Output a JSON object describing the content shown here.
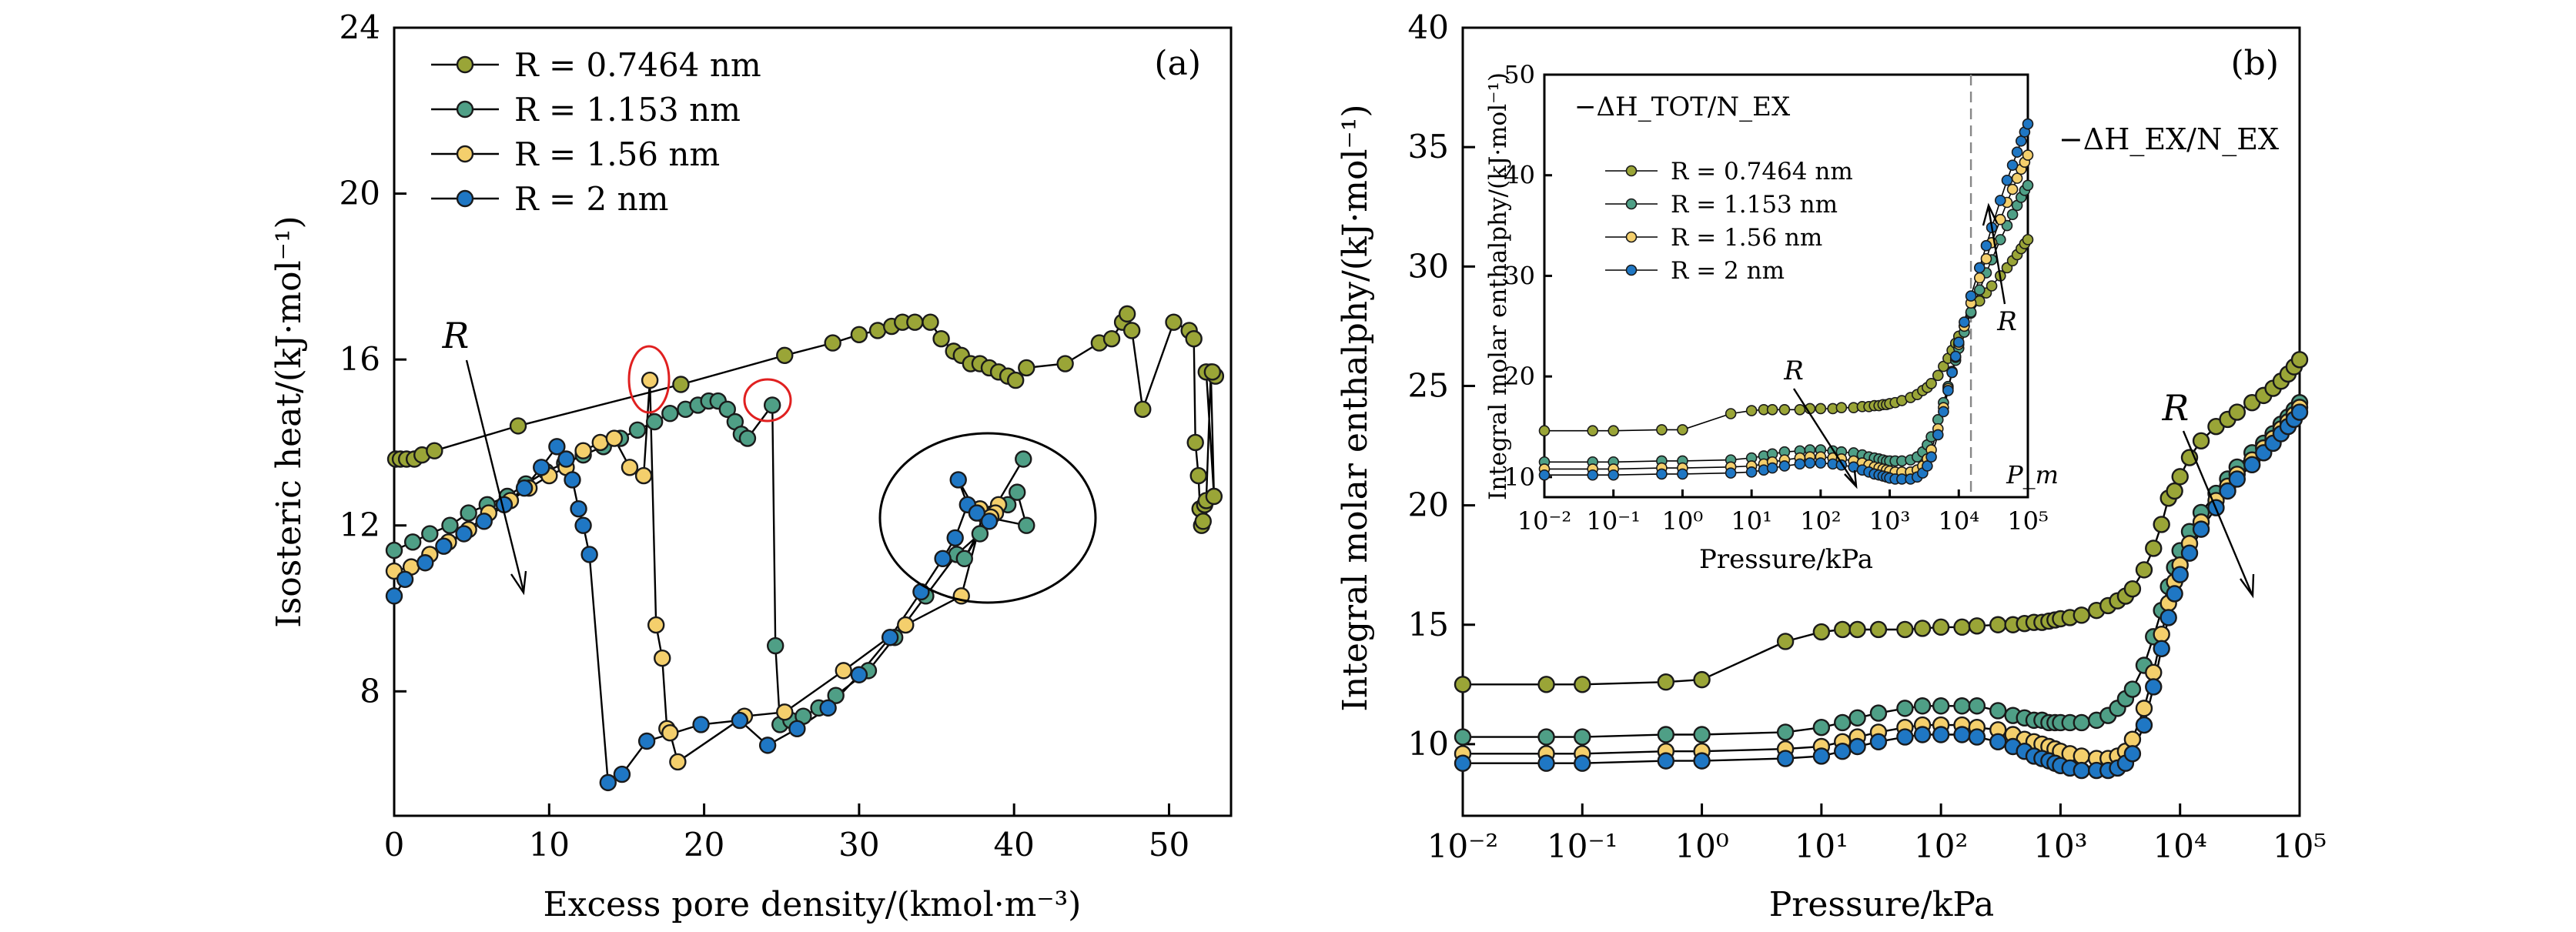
{
  "colors": {
    "olive": "#9aa537",
    "teal": "#4f9f86",
    "yellow": "#f4cf6c",
    "blue": "#1f77c4",
    "red_circle": "#e02020",
    "dashed_line": "#888888"
  },
  "chart_data": [
    {
      "panel": "(a)",
      "type": "line",
      "markers": "circle",
      "xlabel": "Excess pore density/(kmol·m⁻³)",
      "ylabel": "Isosteric heat/(kJ·mol⁻¹)",
      "xlim": [
        0,
        54
      ],
      "ylim": [
        5,
        24
      ],
      "xticks": [
        0,
        10,
        20,
        30,
        40,
        50
      ],
      "yticks": [
        8,
        12,
        16,
        20,
        24
      ],
      "xtick_labels": [
        "0",
        "10",
        "20",
        "30",
        "40",
        "50"
      ],
      "ytick_labels": [
        "8",
        "12",
        "16",
        "20",
        "24"
      ],
      "grid": false,
      "legend_position": "top-left",
      "annotations": [
        {
          "text": "R",
          "style": "italic",
          "note": "arrow pointing down"
        },
        {
          "text": "(a)"
        }
      ],
      "series": [
        {
          "name": "R = 0.7464 nm",
          "color": "olive",
          "x": [
            0.1,
            0.4,
            0.8,
            1.3,
            1.8,
            2.6,
            8.0,
            18.5,
            25.2,
            28.3,
            30.0,
            31.2,
            32.1,
            32.8,
            33.6,
            34.6,
            35.3,
            36.1,
            36.6,
            37.2,
            37.8,
            38.4,
            39.0,
            39.6,
            40.1,
            40.8,
            43.3,
            45.5,
            46.3,
            47.0,
            47.3,
            47.6,
            48.3,
            50.3,
            51.3,
            51.6,
            51.7,
            51.9,
            52.0,
            52.1,
            52.2,
            52.3,
            52.4,
            52.7,
            52.9,
            52.4,
            53.0,
            52.8
          ],
          "y": [
            13.6,
            13.6,
            13.6,
            13.6,
            13.7,
            13.8,
            14.4,
            15.4,
            16.1,
            16.4,
            16.6,
            16.7,
            16.8,
            16.9,
            16.9,
            16.9,
            16.5,
            16.2,
            16.1,
            15.9,
            15.9,
            15.8,
            15.7,
            15.6,
            15.5,
            15.8,
            15.9,
            16.4,
            16.5,
            16.9,
            17.1,
            16.7,
            14.8,
            16.9,
            16.7,
            16.5,
            14.0,
            13.2,
            12.4,
            12.0,
            12.1,
            12.5,
            12.6,
            15.7,
            12.7,
            15.7,
            15.6,
            15.7
          ]
        },
        {
          "name": "R = 1.153 nm",
          "color": "teal",
          "x": [
            0.0,
            1.2,
            2.3,
            3.6,
            4.8,
            6.0,
            7.3,
            8.5,
            9.8,
            11.0,
            12.2,
            13.5,
            14.6,
            15.7,
            16.8,
            17.8,
            18.8,
            19.6,
            20.3,
            20.9,
            21.5,
            22.0,
            22.4,
            22.8,
            24.4,
            24.6,
            24.9,
            25.6,
            26.4,
            27.4,
            28.5,
            30.6,
            32.3,
            34.3,
            36.3,
            37.8,
            39.6,
            40.2,
            40.8,
            38.2,
            36.8,
            40.6
          ],
          "y": [
            11.4,
            11.6,
            11.8,
            12.0,
            12.3,
            12.5,
            12.7,
            13.0,
            13.3,
            13.5,
            13.7,
            13.9,
            14.1,
            14.3,
            14.5,
            14.7,
            14.8,
            14.9,
            15.0,
            15.0,
            14.8,
            14.5,
            14.2,
            14.1,
            14.9,
            9.1,
            7.2,
            7.3,
            7.4,
            7.6,
            7.9,
            8.5,
            9.3,
            10.3,
            11.3,
            11.8,
            12.5,
            12.8,
            12.0,
            12.2,
            11.2,
            13.6
          ]
        },
        {
          "name": "R = 1.56 nm",
          "color": "yellow",
          "x": [
            0.0,
            1.1,
            2.3,
            3.5,
            4.8,
            6.1,
            7.5,
            8.7,
            10.0,
            11.1,
            12.2,
            13.3,
            14.2,
            15.2,
            16.1,
            16.5,
            16.9,
            17.3,
            17.6,
            17.8,
            18.3,
            22.6,
            25.2,
            29.0,
            33.0,
            36.6,
            38.0,
            37.8,
            39.0,
            38.8,
            38.5
          ],
          "y": [
            10.9,
            11.0,
            11.3,
            11.6,
            11.9,
            12.3,
            12.6,
            12.9,
            13.2,
            13.4,
            13.8,
            14.0,
            14.1,
            13.4,
            13.2,
            15.5,
            9.6,
            8.8,
            7.1,
            7.0,
            6.3,
            7.4,
            7.5,
            8.5,
            9.6,
            10.3,
            12.3,
            12.4,
            12.5,
            12.3,
            12.2
          ]
        },
        {
          "name": "R = 2 nm",
          "color": "blue",
          "x": [
            0.0,
            0.7,
            2.0,
            3.2,
            4.5,
            5.8,
            7.1,
            8.4,
            9.5,
            10.5,
            11.1,
            11.5,
            11.9,
            12.2,
            12.6,
            13.8,
            14.7,
            16.3,
            19.8,
            22.3,
            24.1,
            26.0,
            28.0,
            30.0,
            32.0,
            34.0,
            35.4,
            36.2,
            37.0,
            36.4,
            37.6,
            38.4
          ],
          "y": [
            10.3,
            10.7,
            11.1,
            11.5,
            11.8,
            12.1,
            12.5,
            12.9,
            13.4,
            13.9,
            13.6,
            13.1,
            12.4,
            12.0,
            11.3,
            5.8,
            6.0,
            6.8,
            7.2,
            7.3,
            6.7,
            7.1,
            7.6,
            8.4,
            9.3,
            10.4,
            11.2,
            11.7,
            12.5,
            13.1,
            12.3,
            12.1
          ]
        }
      ]
    },
    {
      "panel": "(b)",
      "type": "line",
      "markers": "circle",
      "xscale": "log",
      "xlabel": "Pressure/kPa",
      "ylabel": "Integral molar enthalphy/(kJ·mol⁻¹)",
      "xlim": [
        0.01,
        100000
      ],
      "ylim": [
        7,
        40
      ],
      "xtick_labels": [
        "10⁻²",
        "10⁻¹",
        "10⁰",
        "10¹",
        "10²",
        "10³",
        "10⁴",
        "10⁵"
      ],
      "yticks": [
        10,
        15,
        20,
        25,
        30,
        35,
        40
      ],
      "ytick_labels": [
        "10",
        "15",
        "20",
        "25",
        "30",
        "35",
        "40"
      ],
      "grid": false,
      "annotations": [
        {
          "text": "(b)"
        },
        {
          "text": "−ΔH_EX/N_EX"
        },
        {
          "text": "R",
          "style": "italic",
          "note": "arrow pointing down"
        }
      ],
      "x": [
        0.01,
        0.05,
        0.1,
        0.5,
        1,
        5,
        10,
        15,
        20,
        30,
        50,
        70,
        100,
        150,
        200,
        300,
        400,
        500,
        600,
        700,
        800,
        900,
        1000,
        1200,
        1500,
        2000,
        2500,
        3000,
        3500,
        4000,
        5000,
        6000,
        7000,
        8000,
        9000,
        10000,
        12000,
        15000,
        20000,
        25000,
        30000,
        40000,
        50000,
        60000,
        70000,
        80000,
        90000,
        100000
      ],
      "series": [
        {
          "name": "R = 0.7464 nm",
          "color": "olive",
          "y": [
            12.5,
            12.5,
            12.5,
            12.6,
            12.7,
            14.3,
            14.7,
            14.8,
            14.8,
            14.8,
            14.8,
            14.85,
            14.9,
            14.9,
            14.95,
            15.0,
            15.0,
            15.05,
            15.1,
            15.1,
            15.15,
            15.2,
            15.25,
            15.3,
            15.4,
            15.6,
            15.8,
            16.0,
            16.2,
            16.5,
            17.3,
            18.2,
            19.2,
            20.3,
            20.6,
            21.2,
            22.0,
            22.7,
            23.3,
            23.6,
            23.9,
            24.3,
            24.6,
            24.9,
            25.2,
            25.5,
            25.8,
            26.1
          ]
        },
        {
          "name": "R = 1.153 nm",
          "color": "teal",
          "y": [
            10.3,
            10.3,
            10.3,
            10.4,
            10.4,
            10.5,
            10.7,
            10.9,
            11.1,
            11.3,
            11.5,
            11.6,
            11.6,
            11.6,
            11.6,
            11.4,
            11.2,
            11.1,
            11.0,
            11.0,
            10.9,
            10.9,
            10.9,
            10.9,
            10.9,
            11.0,
            11.2,
            11.5,
            11.9,
            12.3,
            13.3,
            14.5,
            15.6,
            16.6,
            17.4,
            18.1,
            18.9,
            19.7,
            20.5,
            21.1,
            21.6,
            22.2,
            22.6,
            23.0,
            23.4,
            23.7,
            24.0,
            24.3
          ]
        },
        {
          "name": "R = 1.56 nm",
          "color": "yellow",
          "y": [
            9.6,
            9.6,
            9.6,
            9.7,
            9.7,
            9.8,
            9.9,
            10.1,
            10.3,
            10.5,
            10.7,
            10.8,
            10.8,
            10.8,
            10.7,
            10.6,
            10.4,
            10.2,
            10.1,
            10.0,
            9.9,
            9.8,
            9.7,
            9.6,
            9.5,
            9.4,
            9.4,
            9.5,
            9.7,
            10.2,
            11.5,
            13.0,
            14.6,
            15.9,
            16.8,
            17.5,
            18.4,
            19.3,
            20.2,
            20.8,
            21.3,
            21.9,
            22.4,
            22.8,
            23.2,
            23.5,
            23.8,
            24.1
          ]
        },
        {
          "name": "R = 2 nm",
          "color": "blue",
          "y": [
            9.2,
            9.2,
            9.2,
            9.3,
            9.3,
            9.4,
            9.5,
            9.7,
            9.9,
            10.1,
            10.3,
            10.4,
            10.4,
            10.4,
            10.3,
            10.1,
            9.9,
            9.7,
            9.5,
            9.4,
            9.3,
            9.2,
            9.1,
            9.0,
            8.9,
            8.9,
            8.9,
            9.0,
            9.2,
            9.6,
            10.8,
            12.4,
            14.0,
            15.3,
            16.3,
            17.1,
            18.0,
            19.0,
            19.9,
            20.6,
            21.1,
            21.7,
            22.2,
            22.6,
            23.0,
            23.3,
            23.6,
            23.9
          ]
        }
      ]
    },
    {
      "panel": "inset",
      "type": "line",
      "markers": "circle",
      "xscale": "log",
      "title": "−ΔH_TOT/N_EX",
      "xlabel": "Pressure/kPa",
      "ylabel": "Integral molar enthalphy/(kJ·mol⁻¹)",
      "xlim": [
        0.01,
        100000
      ],
      "ylim": [
        8,
        50
      ],
      "xtick_labels": [
        "10⁻²",
        "10⁻¹",
        "10⁰",
        "10¹",
        "10²",
        "10³",
        "10⁴",
        "10⁵"
      ],
      "yticks": [
        10,
        20,
        30,
        40,
        50
      ],
      "ytick_labels": [
        "10",
        "20",
        "30",
        "40",
        "50"
      ],
      "grid": false,
      "legend_position": "left",
      "vline": {
        "x": 15000,
        "label": "P_m",
        "style": "dashed"
      },
      "annotations": [
        {
          "text": "R",
          "style": "italic",
          "note": "arrow down near 10² kPa"
        },
        {
          "text": "R",
          "style": "italic",
          "note": "arrow up near 3×10⁴ kPa"
        }
      ],
      "x": [
        0.01,
        0.05,
        0.1,
        0.5,
        1,
        5,
        10,
        15,
        20,
        30,
        50,
        70,
        100,
        150,
        200,
        300,
        400,
        500,
        600,
        700,
        800,
        900,
        1000,
        1200,
        1500,
        2000,
        2500,
        3000,
        3500,
        4000,
        5000,
        6000,
        7000,
        8000,
        9000,
        10000,
        12000,
        15000,
        20000,
        25000,
        30000,
        40000,
        50000,
        60000,
        70000,
        80000,
        90000,
        100000
      ],
      "series": [
        {
          "name": "R = 0.7464 nm",
          "color": "olive",
          "y": [
            14.6,
            14.6,
            14.6,
            14.7,
            14.7,
            16.3,
            16.6,
            16.7,
            16.7,
            16.7,
            16.7,
            16.8,
            16.8,
            16.8,
            16.9,
            16.9,
            17.0,
            17.0,
            17.1,
            17.1,
            17.2,
            17.2,
            17.3,
            17.4,
            17.6,
            17.9,
            18.2,
            18.6,
            18.9,
            19.3,
            20.1,
            21.0,
            21.8,
            22.6,
            23.3,
            24.0,
            25.0,
            26.3,
            27.5,
            28.3,
            29.0,
            30.0,
            30.8,
            31.5,
            32.1,
            32.7,
            33.2,
            33.6
          ]
        },
        {
          "name": "R = 1.153 nm",
          "color": "teal",
          "y": [
            11.5,
            11.5,
            11.5,
            11.6,
            11.6,
            11.7,
            11.9,
            12.1,
            12.3,
            12.5,
            12.6,
            12.7,
            12.7,
            12.6,
            12.5,
            12.4,
            12.2,
            12.0,
            11.9,
            11.8,
            11.7,
            11.6,
            11.6,
            11.6,
            11.6,
            11.7,
            12.0,
            12.5,
            13.2,
            14.0,
            15.7,
            17.4,
            19.0,
            20.4,
            21.6,
            22.8,
            24.4,
            26.4,
            28.6,
            30.3,
            31.6,
            33.6,
            35.0,
            36.1,
            37.0,
            37.8,
            38.5,
            39.0
          ]
        },
        {
          "name": "R = 1.56 nm",
          "color": "yellow",
          "y": [
            10.8,
            10.8,
            10.8,
            10.9,
            10.9,
            11.0,
            11.1,
            11.3,
            11.5,
            11.7,
            11.9,
            12.0,
            12.0,
            11.9,
            11.8,
            11.6,
            11.4,
            11.2,
            11.0,
            10.9,
            10.8,
            10.7,
            10.6,
            10.5,
            10.5,
            10.5,
            10.7,
            11.1,
            11.8,
            12.7,
            14.8,
            16.9,
            18.8,
            20.5,
            21.9,
            23.2,
            25.0,
            27.3,
            29.8,
            31.7,
            33.3,
            35.6,
            37.3,
            38.6,
            39.7,
            40.6,
            41.3,
            42.0
          ]
        },
        {
          "name": "R = 2 nm",
          "color": "blue",
          "y": [
            10.2,
            10.2,
            10.2,
            10.3,
            10.3,
            10.4,
            10.5,
            10.7,
            10.9,
            11.1,
            11.3,
            11.4,
            11.4,
            11.3,
            11.2,
            11.0,
            10.7,
            10.5,
            10.3,
            10.2,
            10.1,
            10.0,
            9.9,
            9.8,
            9.8,
            9.8,
            10.0,
            10.4,
            11.1,
            12.0,
            14.2,
            16.5,
            18.6,
            20.4,
            22.0,
            23.4,
            25.4,
            28.0,
            30.8,
            33.0,
            34.8,
            37.5,
            39.5,
            41.0,
            42.3,
            43.4,
            44.3,
            45.1
          ]
        }
      ]
    }
  ]
}
